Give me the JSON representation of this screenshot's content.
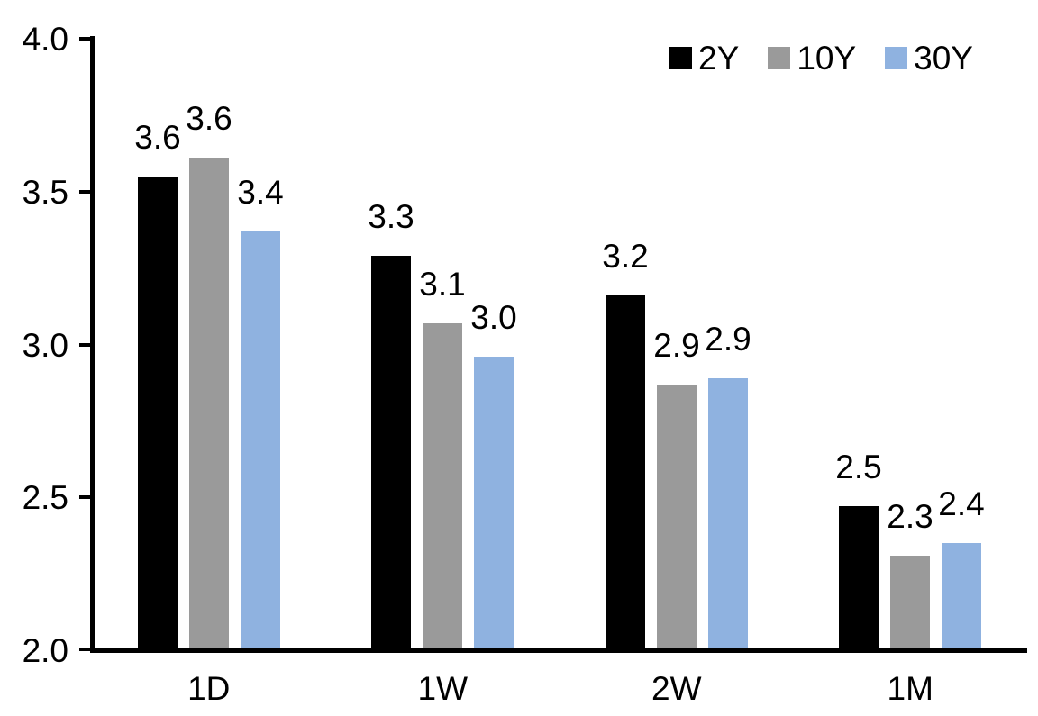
{
  "chart_data": {
    "type": "bar",
    "title": "",
    "xlabel": "",
    "ylabel": "",
    "categories": [
      "1D",
      "1W",
      "2W",
      "1M"
    ],
    "series": [
      {
        "name": "2Y",
        "color": "#000000",
        "values": [
          3.55,
          3.29,
          3.16,
          2.47
        ],
        "labels": [
          "3.6",
          "3.3",
          "3.2",
          "2.5"
        ]
      },
      {
        "name": "10Y",
        "color": "#9A9A9A",
        "values": [
          3.61,
          3.07,
          2.87,
          2.31
        ],
        "labels": [
          "3.6",
          "3.1",
          "2.9",
          "2.3"
        ]
      },
      {
        "name": "30Y",
        "color": "#8FB2E0",
        "values": [
          3.37,
          2.96,
          2.89,
          2.35
        ],
        "labels": [
          "3.4",
          "3.0",
          "2.9",
          "2.4"
        ]
      }
    ],
    "ylim": [
      2.0,
      4.0
    ],
    "ytick_values": [
      4.0,
      3.5,
      3.0,
      2.5,
      2.0
    ],
    "ytick_labels": [
      "4.0",
      "3.5",
      "3.0",
      "2.5",
      "2.0"
    ],
    "grid": false,
    "legend_position": "top-right",
    "axis_color": "#000000",
    "background_color": "#ffffff"
  }
}
